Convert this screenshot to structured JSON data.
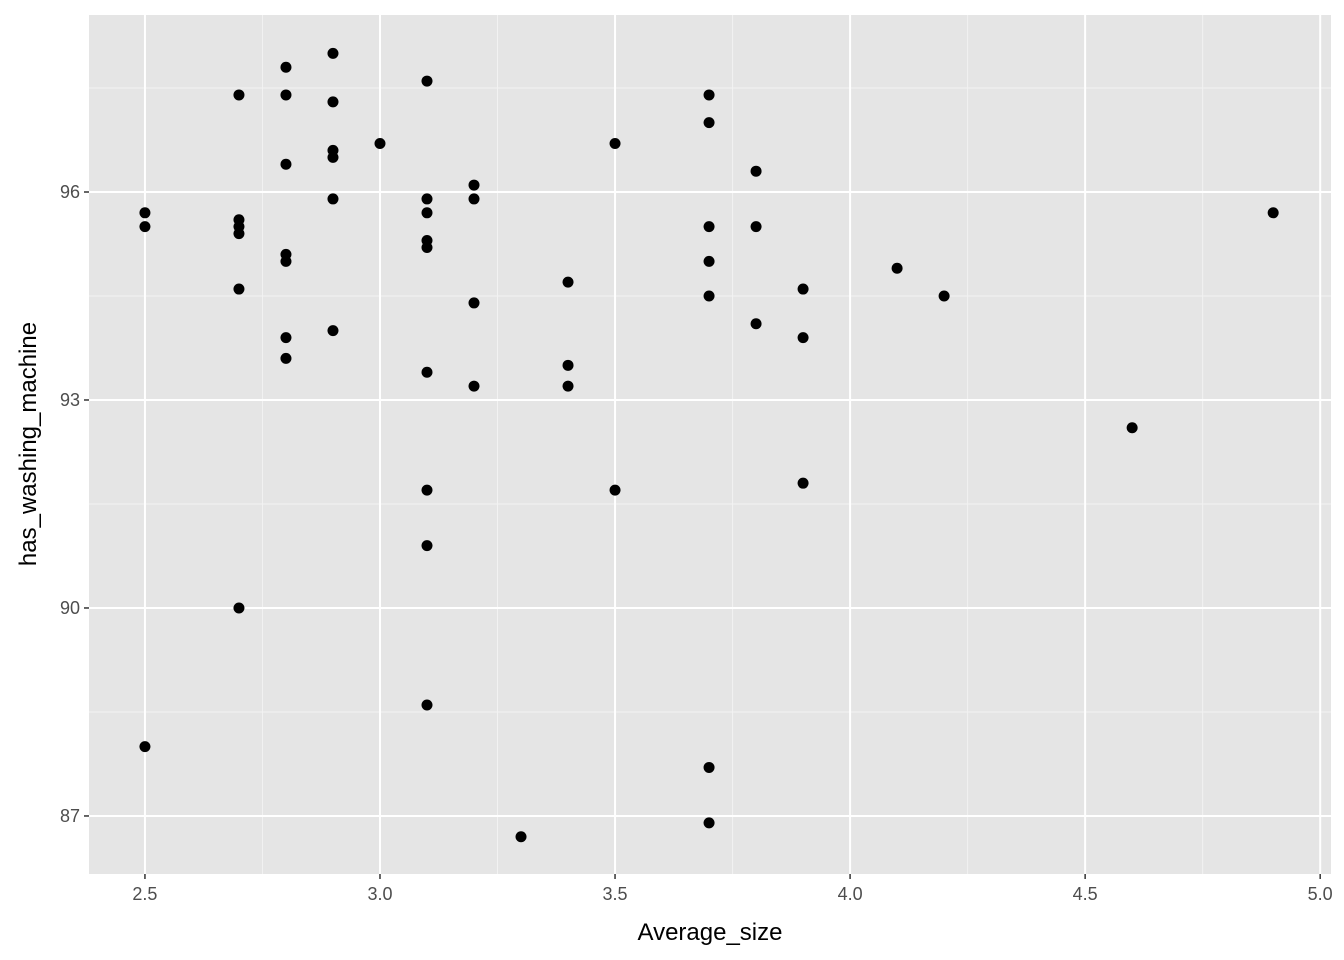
{
  "chart_data": {
    "type": "scatter",
    "x_label": "Average_size",
    "y_label": "has_washing_machine",
    "color": "#000000",
    "grid": true,
    "xlim": [
      2.381,
      5.023
    ],
    "ylim": [
      86.163,
      98.553
    ],
    "xticks": [
      {
        "value": 2.5,
        "label": "2.5"
      },
      {
        "value": 3,
        "label": "3.0"
      },
      {
        "value": 3.5,
        "label": "3.5"
      },
      {
        "value": 4,
        "label": "4.0"
      },
      {
        "value": 4.5,
        "label": "4.5"
      },
      {
        "value": 5,
        "label": "5.0"
      }
    ],
    "yticks": [
      87,
      90,
      93,
      96
    ],
    "x": [
      2.5,
      2.5,
      2.5,
      2.7,
      2.7,
      2.7,
      2.7,
      2.7,
      2.7,
      2.8,
      2.8,
      2.8,
      2.8,
      2.8,
      2.8,
      2.8,
      2.9,
      2.9,
      2.9,
      2.9,
      2.9,
      2.9,
      3.0,
      3.1,
      3.1,
      3.1,
      3.1,
      3.1,
      3.1,
      3.1,
      3.1,
      3.1,
      3.2,
      3.2,
      3.2,
      3.2,
      3.3,
      3.4,
      3.4,
      3.4,
      3.5,
      3.5,
      3.7,
      3.7,
      3.7,
      3.7,
      3.7,
      3.7,
      3.7,
      3.8,
      3.8,
      3.8,
      3.9,
      3.9,
      3.9,
      4.1,
      4.2,
      4.6,
      4.9
    ],
    "y": [
      95.7,
      95.5,
      88.0,
      97.4,
      95.6,
      95.5,
      95.4,
      94.6,
      90.0,
      97.8,
      97.4,
      96.4,
      95.1,
      95.0,
      93.9,
      93.6,
      98.0,
      97.3,
      96.6,
      96.5,
      95.9,
      94.0,
      96.7,
      97.6,
      95.9,
      95.7,
      95.3,
      95.2,
      93.4,
      91.7,
      90.9,
      88.6,
      96.1,
      95.9,
      94.4,
      93.2,
      86.7,
      94.7,
      93.5,
      93.2,
      96.7,
      91.7,
      97.4,
      97.0,
      95.5,
      95.0,
      94.5,
      87.7,
      86.9,
      96.3,
      95.5,
      94.1,
      94.6,
      93.9,
      91.8,
      94.9,
      94.5,
      92.6,
      95.7
    ]
  }
}
